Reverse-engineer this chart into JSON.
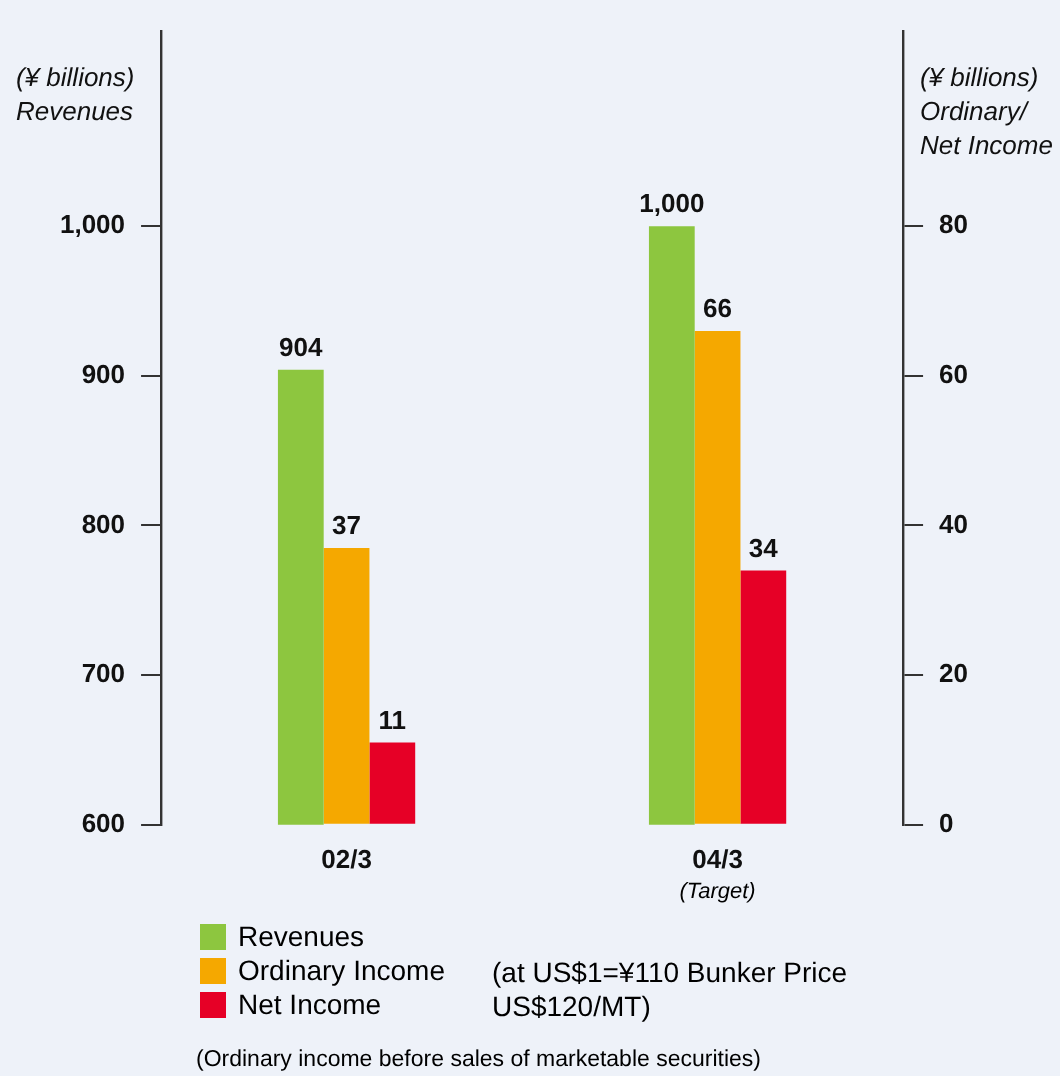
{
  "chart_data": {
    "type": "bar",
    "ylabel": "(¥ billions) Revenues",
    "y2label": "(¥ billions) Ordinary/ Net Income",
    "categories": [
      "02/3",
      "04/3"
    ],
    "series": [
      {
        "name": "Revenues",
        "color": "#8dc63f",
        "values": [
          904,
          1000
        ],
        "value_labels": [
          "904",
          "1,000"
        ]
      },
      {
        "name": "Ordinary Income",
        "color": "#f5a800",
        "values": [
          37,
          66
        ],
        "axis": "y2",
        "value_labels": [
          "37",
          "66"
        ]
      },
      {
        "name": "Net Income",
        "color": "#e60026",
        "values": [
          11,
          34
        ],
        "axis": "y2",
        "value_labels": [
          "11",
          "34"
        ]
      }
    ],
    "ylim": [
      600,
      1130
    ],
    "yticks": [
      600,
      700,
      800,
      900,
      {
        "value": 1000,
        "label": "1,000"
      }
    ],
    "y2lim": [
      0,
      106
    ],
    "y2ticks": [
      0,
      20,
      40,
      60,
      80
    ],
    "grid": false,
    "legend": "bottom left",
    "annotations": [
      "(Target)",
      "(at US$1=¥110 Bunker Price US$120/MT)",
      "(Ordinary income before sales of marketable securities)"
    ]
  }
}
